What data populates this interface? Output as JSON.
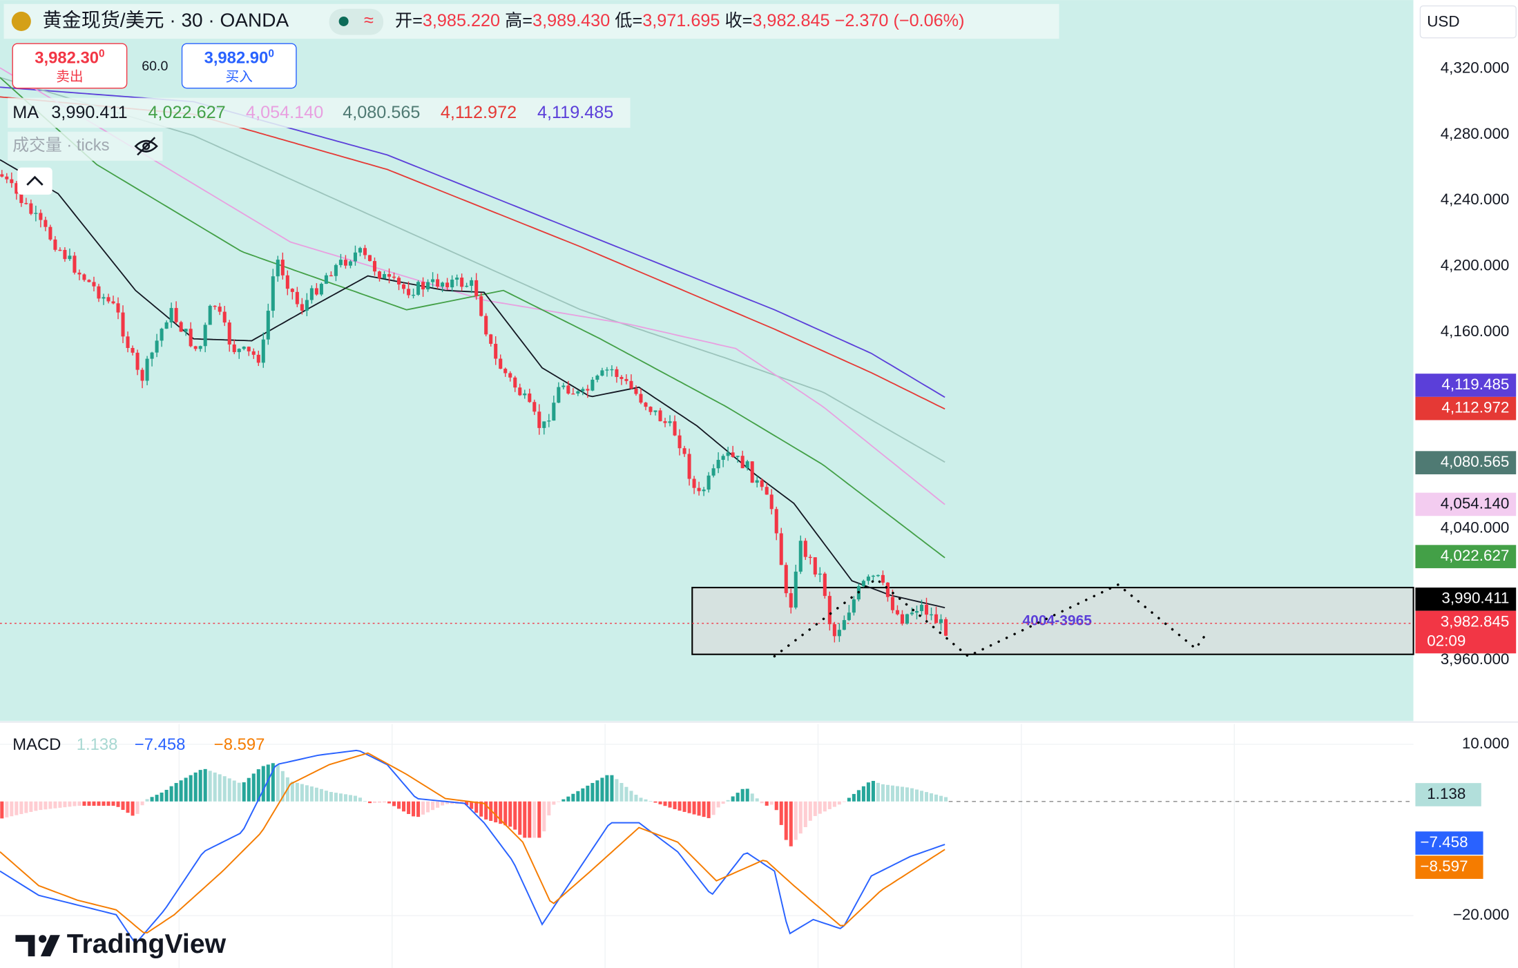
{
  "header": {
    "symbol": "黄金现货/美元 · 30 · OANDA",
    "ohlc": [
      {
        "label": "开=",
        "value": "3,985.220"
      },
      {
        "label": "高=",
        "value": "3,989.430"
      },
      {
        "label": "低=",
        "value": "3,971.695"
      },
      {
        "label": "收=",
        "value": "3,982.845"
      }
    ],
    "change": "−2.370 (−0.06%)"
  },
  "trade": {
    "sell_price": "3,982.30",
    "sell_sup": "0",
    "sell_label": "卖出",
    "spread": "60.0",
    "buy_price": "3,982.90",
    "buy_sup": "0",
    "buy_label": "买入"
  },
  "ma_legend": {
    "label": "MA",
    "values": [
      "3,990.411",
      "4,022.627",
      "4,054.140",
      "4,080.565",
      "4,112.972",
      "4,119.485"
    ]
  },
  "volume_legend": "成交量 · ticks",
  "currency": "USD",
  "price_axis": [
    "4,320.000",
    "4,280.000",
    "4,240.000",
    "4,200.000",
    "4,160.000",
    "4,040.000",
    "3,960.000"
  ],
  "price_tags": [
    "4,119.485",
    "4,112.972",
    "4,080.565",
    "4,054.140",
    "4,022.627",
    "3,990.411",
    "3,982.845"
  ],
  "countdown": "02:09",
  "box_label": "4004-3965",
  "macd_legend": {
    "label": "MACD",
    "values": [
      "1.138",
      "−7.458",
      "−8.597"
    ]
  },
  "macd_axis": [
    "10.000",
    "−20.000"
  ],
  "macd_tags": [
    "1.138",
    "−7.458",
    "−8.597"
  ],
  "logo": "TradingView"
}
